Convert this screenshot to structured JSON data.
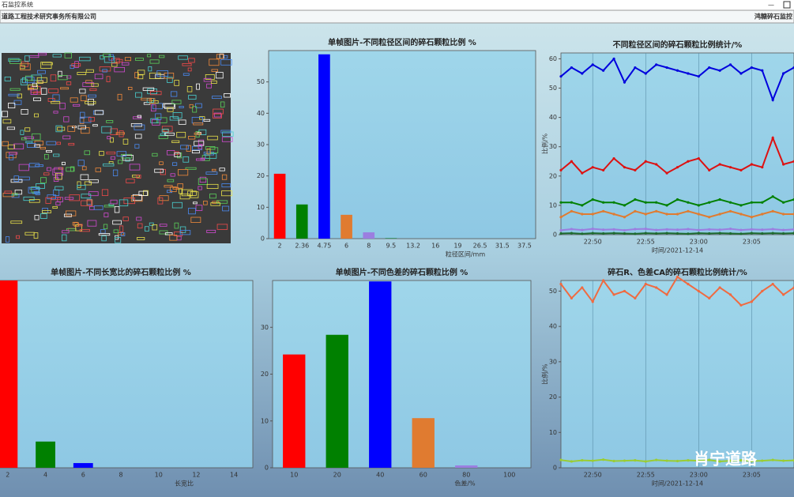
{
  "window": {
    "title": "石监控系统",
    "company": "道路工程技术研究事务所有限公司",
    "app_name": "鸿糖碎石监控"
  },
  "watermark": "肖宁道路",
  "chart_data": [
    {
      "type": "bar",
      "title": "单帧图片-不同粒径区间的碎石颗粒比例 %",
      "x_label": "粒径区间/mm",
      "categories": [
        "2",
        "2.36",
        "4.75",
        "6",
        "8",
        "9.5",
        "13.2",
        "16",
        "19",
        "26.5",
        "31.5",
        "37.5"
      ],
      "values": [
        20.7,
        10.9,
        58.8,
        7.6,
        2,
        0.2,
        0,
        0,
        0,
        0,
        0,
        0
      ],
      "colors": [
        "#ff0000",
        "#008000",
        "#0000ff",
        "#e07b30",
        "#9b7ee0",
        "#2e8b57",
        "#ff0000",
        "#008000",
        "#0000ff",
        "#e07b30",
        "#9b7ee0",
        "#2e8b57"
      ],
      "ylim": [
        0,
        60
      ],
      "yticks": [
        0,
        10,
        20,
        30,
        40,
        50
      ]
    },
    {
      "type": "line",
      "title": "不同粒径区间的碎石颗粒比例统计/%",
      "x_label": "时间/2021-12-14",
      "y_label": "比例/%",
      "x": [
        "22:47",
        "22:48",
        "22:49",
        "22:50",
        "22:51",
        "22:52",
        "22:53",
        "22:54",
        "22:55",
        "22:56",
        "22:57",
        "22:58",
        "22:59",
        "23:00",
        "23:01",
        "23:02",
        "23:03",
        "23:04",
        "23:05",
        "23:06",
        "23:07",
        "23:08",
        "23:09"
      ],
      "xlim": [
        "22:47",
        "23:09"
      ],
      "xticks": [
        "22:50",
        "22:55",
        "23:00",
        "23:05"
      ],
      "ylim": [
        0,
        62
      ],
      "yticks": [
        0,
        10,
        20,
        30,
        40,
        50,
        60
      ],
      "series": [
        {
          "color": "#0000dd",
          "values": [
            54,
            57,
            55,
            58,
            56,
            60,
            52,
            57,
            55,
            58,
            57,
            56,
            55,
            54,
            57,
            56,
            58,
            55,
            57,
            56,
            46,
            55,
            57
          ]
        },
        {
          "color": "#dd1111",
          "values": [
            22,
            25,
            21,
            23,
            22,
            26,
            23,
            22,
            25,
            24,
            21,
            23,
            25,
            26,
            22,
            24,
            23,
            22,
            24,
            23,
            33,
            24,
            25
          ]
        },
        {
          "color": "#008000",
          "values": [
            11,
            11,
            10,
            12,
            11,
            11,
            10,
            12,
            11,
            11,
            10,
            12,
            11,
            10,
            11,
            12,
            11,
            10,
            11,
            11,
            13,
            11,
            12
          ]
        },
        {
          "color": "#e07b30",
          "values": [
            6,
            8,
            7,
            7,
            8,
            7,
            6,
            8,
            7,
            8,
            7,
            7,
            8,
            7,
            6,
            7,
            8,
            7,
            6,
            7,
            8,
            7,
            7
          ]
        },
        {
          "color": "#9b7ee0",
          "values": [
            1.5,
            1.9,
            1.6,
            2,
            1.7,
            1.8,
            1.5,
            1.9,
            2,
            1.6,
            1.8,
            1.7,
            1.9,
            1.6,
            1.8,
            1.7,
            2,
            1.6,
            1.8,
            1.7,
            1.9,
            1.6,
            1.8
          ]
        },
        {
          "color": "#1e6b2e",
          "values": [
            0.4,
            0.5,
            0.3,
            0.5,
            0.4,
            0.5,
            0.4,
            0.3,
            0.5,
            0.4,
            0.5,
            0.4,
            0.3,
            0.5,
            0.4,
            0.5,
            0.4,
            0.3,
            0.5,
            0.4,
            0.5,
            0.4,
            0.5
          ]
        }
      ]
    },
    {
      "type": "bar",
      "title": "单帧图片-不同长宽比的碎石颗粒比例 %",
      "x_label": "长宽比",
      "categories": [
        "2",
        "4",
        "6",
        "8",
        "10",
        "12",
        "14"
      ],
      "values": [
        40,
        5.6,
        1,
        0,
        0,
        0,
        0
      ],
      "colors": [
        "#ff0000",
        "#008000",
        "#0000ff",
        "#e07b30",
        "#9b7ee0",
        "#2e8b57",
        "#ff0000"
      ],
      "ylim": [
        0,
        40
      ]
    },
    {
      "type": "bar",
      "title": "单帧图片-不同色差的碎石颗粒比例 %",
      "x_label": "色差/%",
      "categories": [
        "10",
        "20",
        "40",
        "60",
        "80",
        "100"
      ],
      "values": [
        24.2,
        28.4,
        39.8,
        10.6,
        0.5,
        0
      ],
      "colors": [
        "#ff0000",
        "#008000",
        "#0000ff",
        "#e07b30",
        "#9b7ee0",
        "#2e8b57"
      ],
      "ylim": [
        0,
        40
      ],
      "yticks": [
        0,
        10,
        20,
        30
      ]
    },
    {
      "type": "line",
      "title": "碎石R、色差CA的碎石颗粒比例统计/%",
      "x_label": "时间/2021-12-14",
      "y_label": "比例/%",
      "x": [
        "22:47",
        "22:48",
        "22:49",
        "22:50",
        "22:51",
        "22:52",
        "22:53",
        "22:54",
        "22:55",
        "22:56",
        "22:57",
        "22:58",
        "22:59",
        "23:00",
        "23:01",
        "23:02",
        "23:03",
        "23:04",
        "23:05",
        "23:06",
        "23:07",
        "23:08",
        "23:09"
      ],
      "xlim": [
        "22:47",
        "23:09"
      ],
      "xticks": [
        "22:50",
        "22:55",
        "23:00",
        "23:05"
      ],
      "ylim": [
        0,
        53
      ],
      "yticks": [
        0,
        10,
        20,
        30,
        40,
        50
      ],
      "series": [
        {
          "color": "#f06a40",
          "values": [
            52,
            48,
            51,
            47,
            53,
            49,
            50,
            48,
            52,
            51,
            49,
            54,
            52,
            50,
            48,
            51,
            49,
            46,
            47,
            50,
            52,
            49,
            51
          ]
        },
        {
          "color": "#9acd32",
          "values": [
            2.2,
            1.8,
            2.1,
            2,
            2.3,
            1.9,
            2,
            2.1,
            1.8,
            2.2,
            2,
            1.9,
            2.1,
            2,
            2.2,
            1.8,
            2,
            2.1,
            1.9,
            2,
            2.2,
            2,
            2.1
          ]
        }
      ]
    }
  ]
}
